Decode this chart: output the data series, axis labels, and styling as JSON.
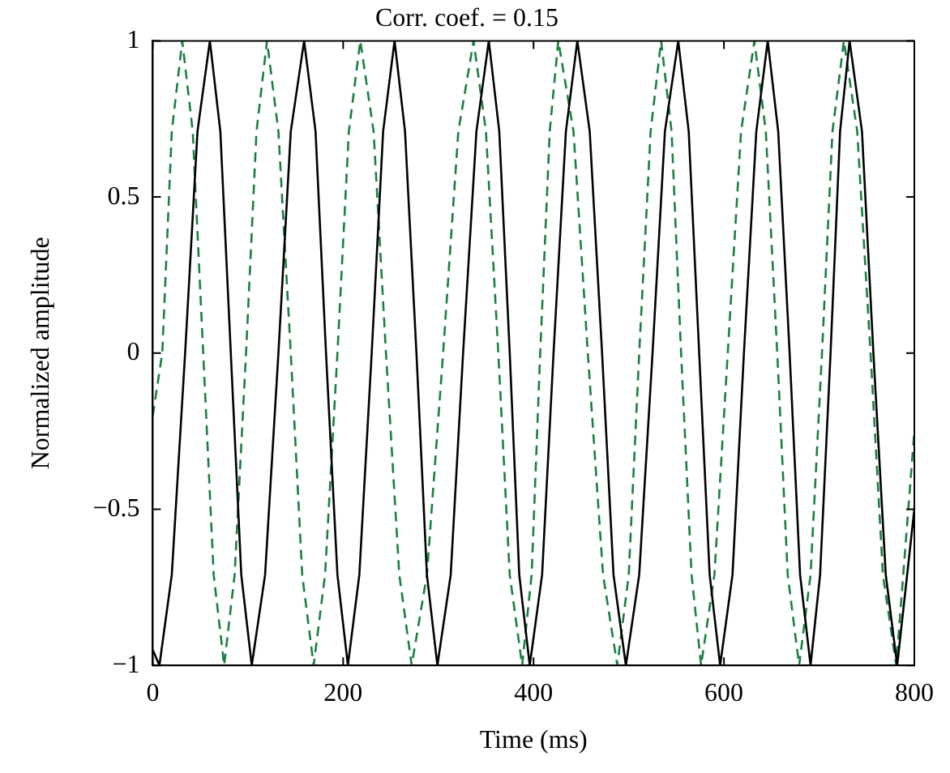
{
  "chart_data": {
    "type": "line",
    "title": "Corr. coef. = 0.15",
    "xlabel": "Time (ms)",
    "ylabel": "Normalized amplitude",
    "xlim": [
      0,
      800
    ],
    "xticks": [
      0,
      200,
      400,
      600,
      800
    ],
    "ylim": [
      -1,
      1
    ],
    "yticks": [
      {
        "value": -1,
        "label": "−1"
      },
      {
        "value": -0.5,
        "label": "−0.5"
      },
      0,
      0.5,
      1
    ],
    "grid": false,
    "legend": false,
    "marker": "none",
    "series": [
      {
        "color": "#000000",
        "line_style": "solid",
        "x": [
          0,
          7,
          20,
          34,
          47,
          60,
          71,
          82,
          93,
          104,
          118,
          132,
          145,
          159,
          171,
          182,
          194,
          205,
          217,
          230,
          242,
          254,
          265,
          277,
          288,
          299,
          313,
          326,
          340,
          353,
          364,
          375,
          385,
          396,
          409,
          421,
          434,
          446,
          459,
          472,
          484,
          497,
          511,
          525,
          538,
          552,
          563,
          574,
          585,
          596,
          609,
          621,
          634,
          646,
          657,
          669,
          680,
          691,
          701,
          712,
          722,
          732,
          745,
          757,
          770,
          782,
          800
        ],
        "values": [
          -0.95,
          -1,
          -0.71,
          0,
          0.71,
          1,
          0.71,
          0,
          -0.71,
          -1,
          -0.71,
          0,
          0.71,
          1,
          0.71,
          0,
          -0.71,
          -1,
          -0.71,
          0,
          0.71,
          1,
          0.71,
          0,
          -0.71,
          -1,
          -0.71,
          0,
          0.71,
          1,
          0.71,
          0,
          -0.71,
          -1,
          -0.71,
          0,
          0.71,
          1,
          0.71,
          0,
          -0.71,
          -1,
          -0.71,
          0,
          0.71,
          1,
          0.71,
          0,
          -0.71,
          -1,
          -0.71,
          0,
          0.71,
          1,
          0.71,
          0,
          -0.71,
          -1,
          -0.71,
          0,
          0.71,
          1,
          0.71,
          0,
          -0.71,
          -1,
          -0.5
        ]
      },
      {
        "color": "#1a8040",
        "line_style": "dashed",
        "x": [
          0,
          10,
          20,
          31,
          42,
          53,
          64,
          75,
          86,
          98,
          109,
          120,
          132,
          145,
          157,
          169,
          181,
          194,
          206,
          218,
          232,
          245,
          259,
          272,
          288,
          305,
          321,
          337,
          350,
          363,
          375,
          388,
          398,
          407,
          417,
          426,
          442,
          457,
          473,
          488,
          500,
          511,
          523,
          534,
          545,
          555,
          566,
          576,
          590,
          604,
          618,
          632,
          644,
          656,
          667,
          679,
          691,
          703,
          714,
          726,
          740,
          754,
          767,
          781,
          800
        ],
        "values": [
          -0.2,
          0,
          0.71,
          1,
          0.71,
          0,
          -0.71,
          -1,
          -0.71,
          0,
          0.71,
          1,
          0.71,
          0,
          -0.71,
          -1,
          -0.71,
          0,
          0.71,
          1,
          0.71,
          0,
          -0.71,
          -1,
          -0.71,
          0,
          0.71,
          1,
          0.71,
          0,
          -0.71,
          -1,
          -0.71,
          0,
          0.71,
          1,
          0.71,
          0,
          -0.71,
          -1,
          -0.71,
          0,
          0.71,
          1,
          0.71,
          0,
          -0.71,
          -1,
          -0.71,
          0,
          0.71,
          1,
          0.71,
          0,
          -0.71,
          -1,
          -0.71,
          0,
          0.71,
          1,
          0.71,
          0,
          -0.71,
          -1,
          -0.25
        ]
      }
    ]
  }
}
